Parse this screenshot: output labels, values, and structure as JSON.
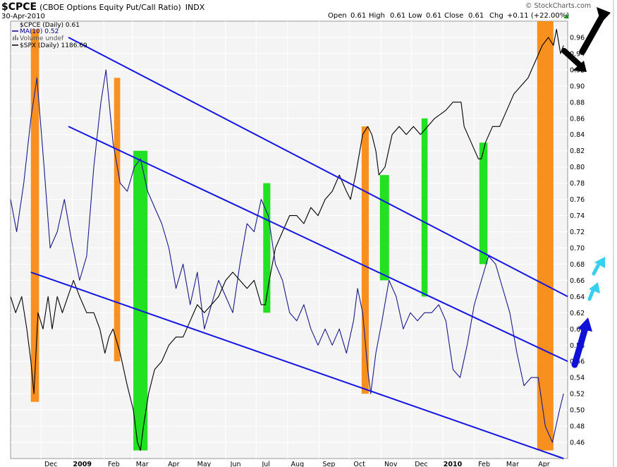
{
  "header": {
    "symbol": "$CPCE",
    "description": "(CBOE Options Equity Put/Call Ratio)",
    "exchange": "INDX",
    "date": "30-Apr-2010",
    "watermark": "© StockCharts.com",
    "ohlc": {
      "open_label": "Open",
      "open": "0.61",
      "high_label": "High",
      "high": "0.61",
      "low_label": "Low",
      "low": "0.61",
      "close_label": "Close",
      "close": "0.61",
      "chg_label": "Chg",
      "chg": "+0.11 (+22.00%)"
    },
    "up_arrow_glyph": "▲"
  },
  "legend": [
    {
      "label": "$CPCE (Daily) 0.61",
      "marker": "none",
      "color": "#000000"
    },
    {
      "label": "MA(10) 0.52",
      "marker": "line",
      "color": "#00008b"
    },
    {
      "label": "Volume undef",
      "marker": "bars",
      "color": "#888888"
    },
    {
      "label": "$SPX (Daily) 1186.69",
      "marker": "line",
      "color": "#000000"
    }
  ],
  "colors": {
    "ma_line": "#1a1a8c",
    "spx_line": "#000000",
    "channel": "#1515e6",
    "orange": "#f7901e",
    "green": "#22e022",
    "plot_bg": "#f4f4f4",
    "grid": "#ffffff",
    "cyan_arrow": "#35d0f0",
    "blue_arrow": "#1010d8",
    "black_arrow": "#000000"
  },
  "chart_data": {
    "type": "line",
    "title": "$CPCE (CBOE Options Equity Put/Call Ratio) INDX",
    "y_axis": {
      "side": "right",
      "ylim": [
        0.44,
        0.98
      ],
      "ticks": [
        "0.96",
        "0.94",
        "0.92",
        "0.90",
        "0.88",
        "0.86",
        "0.84",
        "0.82",
        "0.80",
        "0.78",
        "0.76",
        "0.74",
        "0.72",
        "0.70",
        "0.68",
        "0.66",
        "0.64",
        "0.62",
        "0.60",
        "0.58",
        "0.56",
        "0.54",
        "0.52",
        "0.50",
        "0.48",
        "0.46"
      ],
      "grid": true
    },
    "x_axis": {
      "range": [
        "2008-11-01",
        "2010-05-04"
      ],
      "ticks": [
        {
          "date": "2008-12-01",
          "label": "Dec",
          "bold": false
        },
        {
          "date": "2009-01-01",
          "label": "2009",
          "bold": true
        },
        {
          "date": "2009-02-01",
          "label": "Feb",
          "bold": false
        },
        {
          "date": "2009-03-01",
          "label": "Mar",
          "bold": false
        },
        {
          "date": "2009-04-01",
          "label": "Apr",
          "bold": false
        },
        {
          "date": "2009-05-01",
          "label": "May",
          "bold": false
        },
        {
          "date": "2009-06-01",
          "label": "Jun",
          "bold": false
        },
        {
          "date": "2009-07-01",
          "label": "Jul",
          "bold": false
        },
        {
          "date": "2009-08-01",
          "label": "Aug",
          "bold": false
        },
        {
          "date": "2009-09-01",
          "label": "Sep",
          "bold": false
        },
        {
          "date": "2009-10-01",
          "label": "Oct",
          "bold": false
        },
        {
          "date": "2009-11-01",
          "label": "Nov",
          "bold": false
        },
        {
          "date": "2009-12-01",
          "label": "Dec",
          "bold": false
        },
        {
          "date": "2010-01-01",
          "label": "2010",
          "bold": true
        },
        {
          "date": "2010-02-01",
          "label": "Feb",
          "bold": false
        },
        {
          "date": "2010-03-01",
          "label": "Mar",
          "bold": false
        },
        {
          "date": "2010-04-01",
          "label": "Apr",
          "bold": false
        }
      ]
    },
    "series": [
      {
        "name": "MA(10)",
        "color": "#1a1a8c",
        "axis": "ratio",
        "points": [
          [
            "2008-11-01",
            0.76
          ],
          [
            "2008-11-07",
            0.72
          ],
          [
            "2008-11-14",
            0.78
          ],
          [
            "2008-11-21",
            0.86
          ],
          [
            "2008-11-27",
            0.91
          ],
          [
            "2008-12-04",
            0.8
          ],
          [
            "2008-12-10",
            0.7
          ],
          [
            "2008-12-17",
            0.72
          ],
          [
            "2008-12-24",
            0.76
          ],
          [
            "2008-12-31",
            0.71
          ],
          [
            "2009-01-08",
            0.66
          ],
          [
            "2009-01-15",
            0.69
          ],
          [
            "2009-01-22",
            0.8
          ],
          [
            "2009-01-29",
            0.88
          ],
          [
            "2009-02-03",
            0.92
          ],
          [
            "2009-02-10",
            0.83
          ],
          [
            "2009-02-17",
            0.78
          ],
          [
            "2009-02-24",
            0.77
          ],
          [
            "2009-03-03",
            0.8
          ],
          [
            "2009-03-09",
            0.81
          ],
          [
            "2009-03-16",
            0.77
          ],
          [
            "2009-03-23",
            0.75
          ],
          [
            "2009-03-30",
            0.73
          ],
          [
            "2009-04-06",
            0.7
          ],
          [
            "2009-04-13",
            0.65
          ],
          [
            "2009-04-20",
            0.68
          ],
          [
            "2009-04-27",
            0.63
          ],
          [
            "2009-05-04",
            0.67
          ],
          [
            "2009-05-11",
            0.6
          ],
          [
            "2009-05-18",
            0.63
          ],
          [
            "2009-05-25",
            0.66
          ],
          [
            "2009-06-01",
            0.64
          ],
          [
            "2009-06-08",
            0.62
          ],
          [
            "2009-06-15",
            0.68
          ],
          [
            "2009-06-22",
            0.73
          ],
          [
            "2009-06-29",
            0.72
          ],
          [
            "2009-07-06",
            0.76
          ],
          [
            "2009-07-13",
            0.74
          ],
          [
            "2009-07-20",
            0.68
          ],
          [
            "2009-07-27",
            0.66
          ],
          [
            "2009-08-03",
            0.62
          ],
          [
            "2009-08-10",
            0.61
          ],
          [
            "2009-08-17",
            0.63
          ],
          [
            "2009-08-24",
            0.6
          ],
          [
            "2009-08-31",
            0.58
          ],
          [
            "2009-09-07",
            0.6
          ],
          [
            "2009-09-14",
            0.58
          ],
          [
            "2009-09-21",
            0.6
          ],
          [
            "2009-09-28",
            0.57
          ],
          [
            "2009-10-05",
            0.61
          ],
          [
            "2009-10-09",
            0.65
          ],
          [
            "2009-10-14",
            0.62
          ],
          [
            "2009-10-19",
            0.55
          ],
          [
            "2009-10-22",
            0.52
          ],
          [
            "2009-10-27",
            0.57
          ],
          [
            "2009-11-02",
            0.61
          ],
          [
            "2009-11-09",
            0.66
          ],
          [
            "2009-11-16",
            0.64
          ],
          [
            "2009-11-23",
            0.6
          ],
          [
            "2009-11-30",
            0.62
          ],
          [
            "2009-12-07",
            0.61
          ],
          [
            "2009-12-14",
            0.62
          ],
          [
            "2009-12-21",
            0.62
          ],
          [
            "2009-12-28",
            0.63
          ],
          [
            "2010-01-04",
            0.61
          ],
          [
            "2010-01-11",
            0.55
          ],
          [
            "2010-01-18",
            0.54
          ],
          [
            "2010-01-25",
            0.58
          ],
          [
            "2010-02-01",
            0.63
          ],
          [
            "2010-02-08",
            0.66
          ],
          [
            "2010-02-15",
            0.69
          ],
          [
            "2010-02-22",
            0.68
          ],
          [
            "2010-03-01",
            0.65
          ],
          [
            "2010-03-08",
            0.62
          ],
          [
            "2010-03-15",
            0.57
          ],
          [
            "2010-03-22",
            0.53
          ],
          [
            "2010-03-29",
            0.54
          ],
          [
            "2010-04-05",
            0.54
          ],
          [
            "2010-04-12",
            0.48
          ],
          [
            "2010-04-19",
            0.46
          ],
          [
            "2010-04-26",
            0.5
          ],
          [
            "2010-04-30",
            0.52
          ]
        ]
      },
      {
        "name": "$SPX (Daily) 1186.69",
        "color": "#000000",
        "axis": "ratio",
        "points": [
          [
            "2008-11-01",
            0.64
          ],
          [
            "2008-11-06",
            0.62
          ],
          [
            "2008-11-12",
            0.64
          ],
          [
            "2008-11-17",
            0.6
          ],
          [
            "2008-11-21",
            0.56
          ],
          [
            "2008-11-24",
            0.52
          ],
          [
            "2008-11-28",
            0.62
          ],
          [
            "2008-12-03",
            0.6
          ],
          [
            "2008-12-08",
            0.64
          ],
          [
            "2008-12-12",
            0.6
          ],
          [
            "2008-12-17",
            0.64
          ],
          [
            "2008-12-22",
            0.62
          ],
          [
            "2009-01-02",
            0.66
          ],
          [
            "2009-01-08",
            0.64
          ],
          [
            "2009-01-15",
            0.62
          ],
          [
            "2009-01-22",
            0.62
          ],
          [
            "2009-01-28",
            0.6
          ],
          [
            "2009-02-02",
            0.57
          ],
          [
            "2009-02-06",
            0.59
          ],
          [
            "2009-02-10",
            0.6
          ],
          [
            "2009-02-17",
            0.57
          ],
          [
            "2009-02-24",
            0.53
          ],
          [
            "2009-03-02",
            0.5
          ],
          [
            "2009-03-06",
            0.46
          ],
          [
            "2009-03-09",
            0.45
          ],
          [
            "2009-03-12",
            0.48
          ],
          [
            "2009-03-17",
            0.52
          ],
          [
            "2009-03-23",
            0.55
          ],
          [
            "2009-03-30",
            0.56
          ],
          [
            "2009-04-06",
            0.58
          ],
          [
            "2009-04-13",
            0.59
          ],
          [
            "2009-04-20",
            0.59
          ],
          [
            "2009-04-27",
            0.61
          ],
          [
            "2009-05-04",
            0.63
          ],
          [
            "2009-05-11",
            0.62
          ],
          [
            "2009-05-18",
            0.63
          ],
          [
            "2009-05-25",
            0.64
          ],
          [
            "2009-06-01",
            0.66
          ],
          [
            "2009-06-08",
            0.67
          ],
          [
            "2009-06-15",
            0.66
          ],
          [
            "2009-06-22",
            0.65
          ],
          [
            "2009-06-29",
            0.66
          ],
          [
            "2009-07-06",
            0.63
          ],
          [
            "2009-07-10",
            0.63
          ],
          [
            "2009-07-14",
            0.66
          ],
          [
            "2009-07-20",
            0.7
          ],
          [
            "2009-07-27",
            0.72
          ],
          [
            "2009-08-03",
            0.74
          ],
          [
            "2009-08-10",
            0.74
          ],
          [
            "2009-08-17",
            0.73
          ],
          [
            "2009-08-24",
            0.75
          ],
          [
            "2009-08-31",
            0.74
          ],
          [
            "2009-09-07",
            0.76
          ],
          [
            "2009-09-14",
            0.77
          ],
          [
            "2009-09-21",
            0.79
          ],
          [
            "2009-09-28",
            0.77
          ],
          [
            "2009-10-02",
            0.76
          ],
          [
            "2009-10-07",
            0.79
          ],
          [
            "2009-10-14",
            0.84
          ],
          [
            "2009-10-19",
            0.85
          ],
          [
            "2009-10-23",
            0.84
          ],
          [
            "2009-10-27",
            0.82
          ],
          [
            "2009-10-30",
            0.79
          ],
          [
            "2009-11-05",
            0.8
          ],
          [
            "2009-11-12",
            0.84
          ],
          [
            "2009-11-19",
            0.85
          ],
          [
            "2009-11-26",
            0.84
          ],
          [
            "2009-12-03",
            0.85
          ],
          [
            "2009-12-10",
            0.84
          ],
          [
            "2009-12-17",
            0.85
          ],
          [
            "2009-12-24",
            0.86
          ],
          [
            "2010-01-04",
            0.87
          ],
          [
            "2010-01-11",
            0.88
          ],
          [
            "2010-01-19",
            0.88
          ],
          [
            "2010-01-22",
            0.85
          ],
          [
            "2010-01-29",
            0.83
          ],
          [
            "2010-02-05",
            0.81
          ],
          [
            "2010-02-08",
            0.81
          ],
          [
            "2010-02-12",
            0.83
          ],
          [
            "2010-02-19",
            0.85
          ],
          [
            "2010-02-26",
            0.85
          ],
          [
            "2010-03-05",
            0.87
          ],
          [
            "2010-03-12",
            0.89
          ],
          [
            "2010-03-19",
            0.9
          ],
          [
            "2010-03-26",
            0.91
          ],
          [
            "2010-04-02",
            0.93
          ],
          [
            "2010-04-09",
            0.95
          ],
          [
            "2010-04-15",
            0.96
          ],
          [
            "2010-04-20",
            0.95
          ],
          [
            "2010-04-23",
            0.97
          ],
          [
            "2010-04-27",
            0.94
          ],
          [
            "2010-04-30",
            0.95
          ]
        ]
      }
    ],
    "channel_lines": [
      {
        "from": [
          "2008-12-28",
          0.96
        ],
        "to": [
          "2010-05-04",
          0.64
        ]
      },
      {
        "from": [
          "2008-12-28",
          0.85
        ],
        "to": [
          "2010-05-04",
          0.56
        ]
      },
      {
        "from": [
          "2008-11-21",
          0.67
        ],
        "to": [
          "2010-04-30",
          0.44
        ]
      }
    ],
    "highlights": [
      {
        "color": "orange",
        "from": "2008-11-21",
        "to": "2008-11-29",
        "y_range": [
          0.51,
          0.97
        ]
      },
      {
        "color": "orange",
        "from": "2009-02-11",
        "to": "2009-02-17",
        "y_range": [
          0.56,
          0.91
        ]
      },
      {
        "color": "green",
        "from": "2009-03-02",
        "to": "2009-03-16",
        "y_range": [
          0.45,
          0.82
        ]
      },
      {
        "color": "green",
        "from": "2009-07-08",
        "to": "2009-07-15",
        "y_range": [
          0.62,
          0.78
        ]
      },
      {
        "color": "orange",
        "from": "2009-10-13",
        "to": "2009-10-20",
        "y_range": [
          0.52,
          0.85
        ]
      },
      {
        "color": "green",
        "from": "2009-10-31",
        "to": "2009-11-09",
        "y_range": [
          0.66,
          0.79
        ]
      },
      {
        "color": "green",
        "from": "2009-12-11",
        "to": "2009-12-17",
        "y_range": [
          0.64,
          0.86
        ]
      },
      {
        "color": "green",
        "from": "2010-02-06",
        "to": "2010-02-14",
        "y_range": [
          0.68,
          0.83
        ]
      },
      {
        "color": "orange",
        "from": "2010-04-04",
        "to": "2010-04-20",
        "y_range": [
          0.45,
          0.98
        ]
      }
    ],
    "annotation_arrows": [
      {
        "color": "black",
        "direction": "up-right"
      },
      {
        "color": "black",
        "direction": "down-right"
      },
      {
        "color": "cyan",
        "direction": "up"
      },
      {
        "color": "cyan",
        "direction": "up"
      },
      {
        "color": "blue",
        "direction": "up-right"
      }
    ]
  }
}
